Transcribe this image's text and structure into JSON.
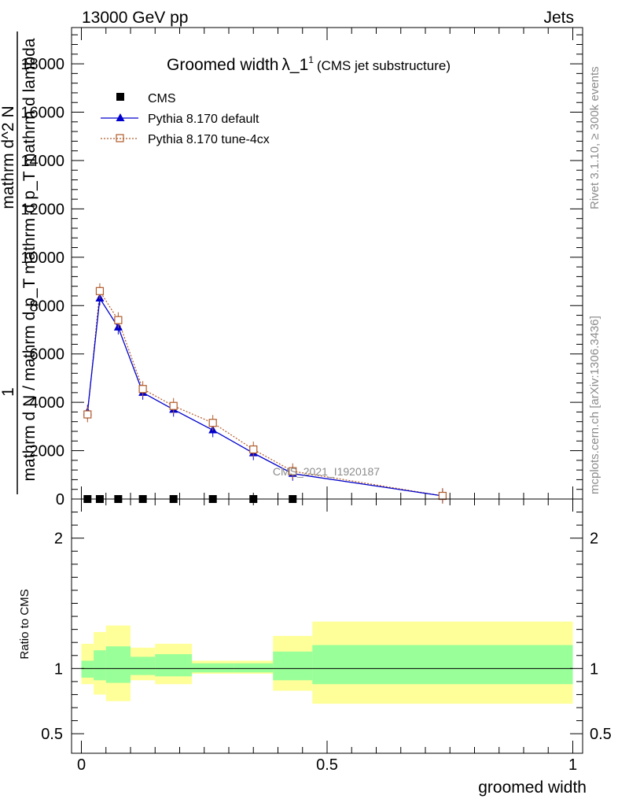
{
  "header": {
    "energy_label": "13000 GeV pp",
    "category_label": "Jets"
  },
  "side_labels": {
    "rivet": "Rivet 3.1.10, ≥ 300k events",
    "mcplots": "mcplots.cern.ch [arXiv:1306.3436]"
  },
  "chart_data": [
    {
      "type": "line",
      "title": "Groomed width",
      "title_symbol": "λ_1",
      "title_superscript": "1",
      "subtitle": "(CMS jet substructure)",
      "watermark": "CMS_2021_I1920187",
      "ylabel_numerator": "1",
      "ylabel_denominator": "mathrm d N / mathrm d p_T mathrm d p_T mathrm d lambda",
      "ylabel_fraction": "mathrm d^2 N",
      "ylim": [
        0,
        19500
      ],
      "xlim": [
        -0.02,
        1.02
      ],
      "yticks": [
        0,
        2000,
        4000,
        6000,
        8000,
        10000,
        12000,
        14000,
        16000,
        18000
      ],
      "ytick_labels": [
        "0",
        "2000",
        "4000",
        "6000",
        "8000",
        "10000",
        "12000",
        "14000",
        "16000",
        "18000"
      ],
      "legend": [
        {
          "name": "CMS",
          "marker": "square",
          "color": "#000000"
        },
        {
          "name": "Pythia 8.170 default",
          "marker": "triangle",
          "color": "#0000cc"
        },
        {
          "name": "Pythia 8.170 tune-4cx",
          "marker": "open-square",
          "color": "#b05a28"
        }
      ],
      "series": [
        {
          "name": "CMS",
          "x": [
            0.0125,
            0.0375,
            0.075,
            0.125,
            0.1875,
            0.2675,
            0.35,
            0.43
          ],
          "y": [
            0,
            0,
            0,
            0,
            0,
            0,
            0,
            0
          ]
        },
        {
          "name": "Pythia 8.170 default",
          "x": [
            0.0125,
            0.0375,
            0.075,
            0.125,
            0.1875,
            0.2675,
            0.35,
            0.43,
            0.735
          ],
          "y": [
            3600,
            8300,
            7100,
            4400,
            3700,
            2850,
            1900,
            1050,
            130
          ]
        },
        {
          "name": "Pythia 8.170 tune-4cx",
          "x": [
            0.0125,
            0.0375,
            0.075,
            0.125,
            0.1875,
            0.2675,
            0.35,
            0.43,
            0.735
          ],
          "y": [
            3500,
            8600,
            7400,
            4550,
            3850,
            3150,
            2050,
            1150,
            130
          ]
        }
      ]
    },
    {
      "type": "area",
      "ylabel": "Ratio to CMS",
      "xlabel": "groomed width",
      "ylim": [
        0.35,
        2.3
      ],
      "xlim": [
        -0.02,
        1.02
      ],
      "yticks": [
        0.5,
        1,
        2
      ],
      "ytick_labels": [
        "0.5",
        "1",
        "2"
      ],
      "xticks": [
        0,
        0.5,
        1
      ],
      "xtick_labels": [
        "0",
        "0.5",
        "1"
      ],
      "reference_line": 1,
      "bins": [
        {
          "x0": 0.0,
          "x1": 0.025,
          "green_lo": 0.93,
          "green_hi": 1.06,
          "yellow_lo": 0.88,
          "yellow_hi": 1.19
        },
        {
          "x0": 0.025,
          "x1": 0.05,
          "green_lo": 0.91,
          "green_hi": 1.14,
          "yellow_lo": 0.8,
          "yellow_hi": 1.28
        },
        {
          "x0": 0.05,
          "x1": 0.1,
          "green_lo": 0.89,
          "green_hi": 1.17,
          "yellow_lo": 0.75,
          "yellow_hi": 1.33
        },
        {
          "x0": 0.1,
          "x1": 0.15,
          "green_lo": 0.95,
          "green_hi": 1.09,
          "yellow_lo": 0.91,
          "yellow_hi": 1.16
        },
        {
          "x0": 0.15,
          "x1": 0.225,
          "green_lo": 0.94,
          "green_hi": 1.11,
          "yellow_lo": 0.88,
          "yellow_hi": 1.19
        },
        {
          "x0": 0.225,
          "x1": 0.31,
          "green_lo": 0.97,
          "green_hi": 1.04,
          "yellow_lo": 0.96,
          "yellow_hi": 1.06
        },
        {
          "x0": 0.31,
          "x1": 0.39,
          "green_lo": 0.97,
          "green_hi": 1.04,
          "yellow_lo": 0.96,
          "yellow_hi": 1.06
        },
        {
          "x0": 0.39,
          "x1": 0.47,
          "green_lo": 0.91,
          "green_hi": 1.13,
          "yellow_lo": 0.83,
          "yellow_hi": 1.25
        },
        {
          "x0": 0.47,
          "x1": 1.0,
          "green_lo": 0.88,
          "green_hi": 1.18,
          "yellow_lo": 0.73,
          "yellow_hi": 1.36
        }
      ]
    }
  ]
}
